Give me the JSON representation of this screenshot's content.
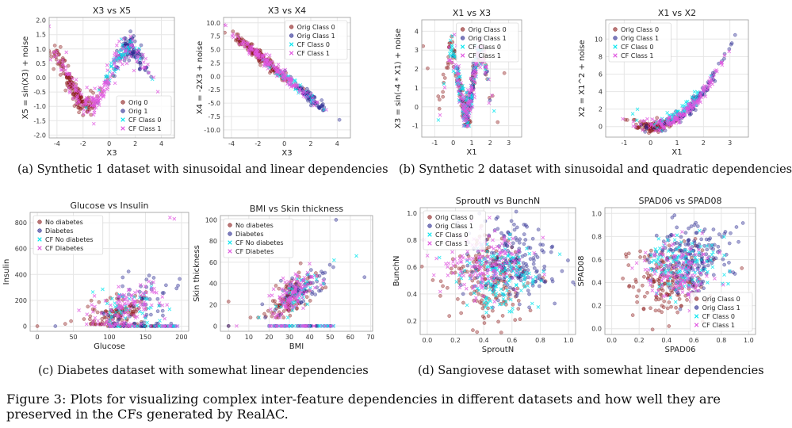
{
  "colors": {
    "orig0": "#8b1a1a",
    "orig1": "#26268f",
    "cf0": "#00e5ee",
    "cf1": "#e055e0",
    "grid": "#e6e6e6"
  },
  "subcaptions": {
    "a": "(a) Synthetic 1 dataset with sinusoidal and linear dependencies",
    "b": "(b) Synthetic 2 dataset with sinusoidal and quadratic dependencies",
    "c": "(c) Diabetes dataset with somewhat linear dependencies",
    "d": "(d) Sangiovese dataset with somewhat linear dependencies"
  },
  "figure_caption": "Figure 3: Plots for visualizing complex inter-feature dependencies in different datasets and how well they are preserved in the CFs generated by RealAC.",
  "chart_data": [
    {
      "id": "p1",
      "type": "scatter",
      "title": "X3 vs X5",
      "xlabel": "X3",
      "ylabel": "X5 = sin(X3) + noise",
      "xlim": [
        -4.6,
        5.0
      ],
      "ylim": [
        -2.1,
        2.1
      ],
      "xticks": [
        "-4",
        "-2",
        "0",
        "2",
        "4"
      ],
      "xtick_values": [
        -4,
        -2,
        0,
        2,
        4
      ],
      "yticks": [
        "-2.0",
        "-1.5",
        "-1.0",
        "-0.5",
        "0.0",
        "0.5",
        "1.0",
        "1.5",
        "2.0"
      ],
      "ytick_values": [
        -2,
        -1.5,
        -1,
        -0.5,
        0,
        0.5,
        1,
        1.5,
        2
      ],
      "legend": [
        "Orig 0",
        "Orig 1",
        "CF Class 0",
        "CF Class 1"
      ],
      "legend_position": "bottom-right",
      "grid": true
    },
    {
      "id": "p2",
      "type": "scatter",
      "title": "X3 vs X4",
      "xlabel": "X3",
      "ylabel": "X4 = -2X3 + noise",
      "xlim": [
        -4.6,
        5.0
      ],
      "ylim": [
        -11.5,
        11
      ],
      "xticks": [
        "-4",
        "-2",
        "0",
        "2",
        "4"
      ],
      "xtick_values": [
        -4,
        -2,
        0,
        2,
        4
      ],
      "yticks": [
        "10.0",
        "7.5",
        "5.0",
        "2.5",
        "0.0",
        "-2.5",
        "-5.0",
        "-7.5",
        "-10.0"
      ],
      "ytick_values": [
        10,
        7.5,
        5,
        2.5,
        0,
        -2.5,
        -5,
        -7.5,
        -10
      ],
      "legend": [
        "Orig Class 0",
        "Orig Class 1",
        "CF Class 0",
        "CF Class 1"
      ],
      "legend_position": "top-right",
      "grid": true
    },
    {
      "id": "p3",
      "type": "scatter",
      "title": "X1 vs X3",
      "xlabel": "X1",
      "ylabel": "X3 = sin(-4 * X1) + noise",
      "xlim": [
        -1.7,
        3.7
      ],
      "ylim": [
        -1.6,
        4.6
      ],
      "xticks": [
        "-1",
        "0",
        "1",
        "2",
        "3"
      ],
      "xtick_values": [
        -1,
        0,
        1,
        2,
        3
      ],
      "yticks": [
        "-1",
        "0",
        "1",
        "2",
        "3",
        "4"
      ],
      "ytick_values": [
        -1,
        0,
        1,
        2,
        3,
        4
      ],
      "legend": [
        "Orig Class 0",
        "Orig Class 1",
        "CF Class 0",
        "CF Class 1"
      ],
      "legend_position": "top-right",
      "grid": true
    },
    {
      "id": "p4",
      "type": "scatter",
      "title": "X1 vs X2",
      "xlabel": "X1",
      "ylabel": "X2 = X1^2 + noise",
      "xlim": [
        -1.7,
        3.7
      ],
      "ylim": [
        -1.2,
        12.2
      ],
      "xticks": [
        "-1",
        "0",
        "1",
        "2",
        "3"
      ],
      "xtick_values": [
        -1,
        0,
        1,
        2,
        3
      ],
      "yticks": [
        "0",
        "2",
        "4",
        "6",
        "8",
        "10"
      ],
      "ytick_values": [
        0,
        2,
        4,
        6,
        8,
        10
      ],
      "legend": [
        "Orig Class 0",
        "Orig Class 1",
        "CF Class 0",
        "CF Class 1"
      ],
      "legend_position": "top-left",
      "grid": true
    },
    {
      "id": "p5",
      "type": "scatter",
      "title": "Glucose vs Insulin",
      "xlabel": "Glucose",
      "ylabel": "Insulin",
      "xlim": [
        -10,
        210
      ],
      "ylim": [
        -40,
        880
      ],
      "xticks": [
        "0",
        "50",
        "100",
        "150",
        "200"
      ],
      "xtick_values": [
        0,
        50,
        100,
        150,
        200
      ],
      "yticks": [
        "0",
        "200",
        "400",
        "600",
        "800"
      ],
      "ytick_values": [
        0,
        200,
        400,
        600,
        800
      ],
      "legend": [
        "No diabetes",
        "Diabetes",
        "CF No diabetes",
        "CF Diabetes"
      ],
      "legend_position": "top-left",
      "grid": true
    },
    {
      "id": "p6",
      "type": "scatter",
      "title": "BMI vs Skin thickness",
      "xlabel": "BMI",
      "ylabel": "Skin thickness",
      "xlim": [
        -4,
        71
      ],
      "ylim": [
        -5,
        104
      ],
      "xticks": [
        "0",
        "10",
        "20",
        "30",
        "40",
        "50",
        "60",
        "70"
      ],
      "xtick_values": [
        0,
        10,
        20,
        30,
        40,
        50,
        60,
        70
      ],
      "yticks": [
        "0",
        "20",
        "40",
        "60",
        "80",
        "100"
      ],
      "ytick_values": [
        0,
        20,
        40,
        60,
        80,
        100
      ],
      "legend": [
        "No diabetes",
        "Diabetes",
        "CF No diabetes",
        "CF Diabetes"
      ],
      "legend_position": "top-left",
      "grid": true
    },
    {
      "id": "p7",
      "type": "scatter",
      "title": "SproutN vs BunchN",
      "xlabel": "SproutN",
      "ylabel": "BunchN",
      "xlim": [
        -0.05,
        1.05
      ],
      "ylim": [
        0.1,
        1.04
      ],
      "xticks": [
        "0.0",
        "0.2",
        "0.4",
        "0.6",
        "0.8",
        "1.0"
      ],
      "xtick_values": [
        0,
        0.2,
        0.4,
        0.6,
        0.8,
        1.0
      ],
      "yticks": [
        "0.2",
        "0.4",
        "0.6",
        "0.8",
        "1.0"
      ],
      "ytick_values": [
        0.2,
        0.4,
        0.6,
        0.8,
        1.0
      ],
      "legend": [
        "Orig Class 0",
        "Orig Class 1",
        "CF Class 0",
        "CF Class 1"
      ],
      "legend_position": "top-left",
      "grid": true
    },
    {
      "id": "p8",
      "type": "scatter",
      "title": "SPAD06 vs SPAD08",
      "xlabel": "SPAD06",
      "ylabel": "SPAD08",
      "xlim": [
        -0.05,
        1.05
      ],
      "ylim": [
        -0.05,
        1.05
      ],
      "xticks": [
        "0.0",
        "0.2",
        "0.4",
        "0.6",
        "0.8",
        "1.0"
      ],
      "xtick_values": [
        0,
        0.2,
        0.4,
        0.6,
        0.8,
        1.0
      ],
      "yticks": [
        "0.0",
        "0.2",
        "0.4",
        "0.6",
        "0.8",
        "1.0"
      ],
      "ytick_values": [
        0,
        0.2,
        0.4,
        0.6,
        0.8,
        1.0
      ],
      "legend": [
        "Orig Class 0",
        "Orig Class 1",
        "CF Class 0",
        "CF Class 1"
      ],
      "legend_position": "bottom-right",
      "grid": true
    }
  ]
}
